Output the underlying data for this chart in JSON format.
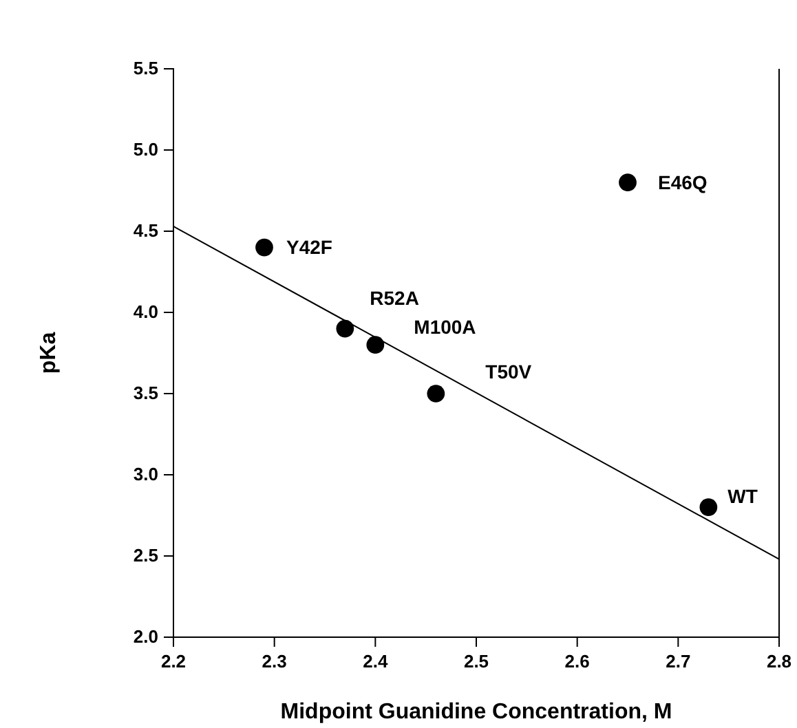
{
  "chart_data": {
    "type": "scatter",
    "xlabel": "Midpoint Guanidine Concentration, M",
    "ylabel": "pKa",
    "xlim": [
      2.2,
      2.8
    ],
    "xticks": [
      2.2,
      2.3,
      2.4,
      2.5,
      2.6,
      2.7,
      2.8
    ],
    "ylim": [
      2.0,
      5.5
    ],
    "yticks": [
      {
        "value": 2.0,
        "label": "2.0"
      },
      {
        "value": 2.5,
        "label": "2.5"
      },
      {
        "value": 3.0,
        "label": "3.0"
      },
      {
        "value": 3.5,
        "label": "3.5"
      },
      {
        "value": 4.0,
        "label": "4.0"
      },
      {
        "value": 4.5,
        "label": "4.5"
      },
      {
        "value": 5.0,
        "label": "5.0"
      },
      {
        "value": 5.5,
        "label": "5.5"
      }
    ],
    "grid": false,
    "series": [
      {
        "marker": "circle",
        "color": "#000000",
        "x": [
          2.29,
          2.37,
          2.4,
          2.46,
          2.65,
          2.73
        ],
        "values": [
          4.4,
          3.9,
          3.8,
          3.5,
          4.8,
          2.8
        ]
      },
      {
        "type": "line",
        "marker": "none",
        "color": "#000000",
        "x": [
          2.2,
          2.8
        ],
        "values": [
          4.53,
          2.48
        ]
      }
    ],
    "annotations": [
      {
        "text": "Y42F",
        "x": 2.29,
        "y": 4.4
      },
      {
        "text": "R52A",
        "x": 2.37,
        "y": 3.9
      },
      {
        "text": "M100A",
        "x": 2.4,
        "y": 3.8
      },
      {
        "text": "T50V",
        "x": 2.46,
        "y": 3.5
      },
      {
        "text": "E46Q",
        "x": 2.65,
        "y": 4.8
      },
      {
        "text": "WT",
        "x": 2.73,
        "y": 2.8
      }
    ]
  }
}
